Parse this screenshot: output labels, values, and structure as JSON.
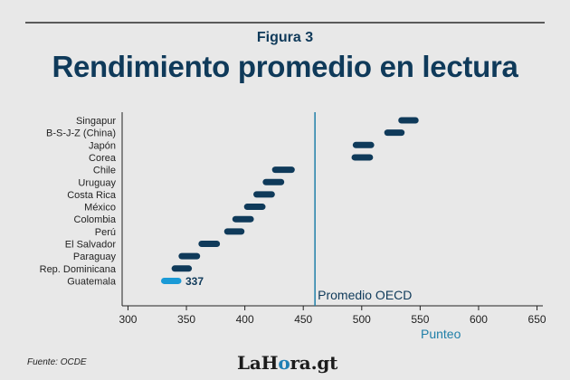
{
  "figure_label": "Figura 3",
  "source": "Fuente: OCDE",
  "logo": {
    "part1": "LaH",
    "part2": "o",
    "part3": "ra.gt"
  },
  "chart_data": {
    "type": "range-bar",
    "title": "Rendimiento promedio en lectura",
    "xlabel": "Punteo",
    "ylabel": "",
    "xlim": [
      295,
      655
    ],
    "xticks": [
      300,
      350,
      400,
      450,
      500,
      550,
      600,
      650
    ],
    "grid": false,
    "reference_line": {
      "label": "Promedio OECD",
      "value": 460
    },
    "categories": [
      "Singapur",
      "B-S-J-Z (China)",
      "Japón",
      "Corea",
      "Chile",
      "Uruguay",
      "Costa Rica",
      "México",
      "Colombia",
      "Perú",
      "El Salvador",
      "Paraguay",
      "Rep. Dominicana",
      "Guatemala"
    ],
    "ranges": [
      [
        534,
        546
      ],
      [
        522,
        534
      ],
      [
        495,
        508
      ],
      [
        494,
        507
      ],
      [
        426,
        440
      ],
      [
        418,
        431
      ],
      [
        410,
        423
      ],
      [
        402,
        415
      ],
      [
        392,
        405
      ],
      [
        385,
        397
      ],
      [
        363,
        376
      ],
      [
        346,
        359
      ],
      [
        340,
        352
      ],
      [
        331,
        343
      ]
    ],
    "highlight": {
      "category": "Guatemala",
      "label": "337"
    },
    "colors": {
      "bar": "#0f3a5a",
      "highlight": "#1a9ad6",
      "reference": "#1f7fa8",
      "title": "#0f3a5a"
    }
  }
}
